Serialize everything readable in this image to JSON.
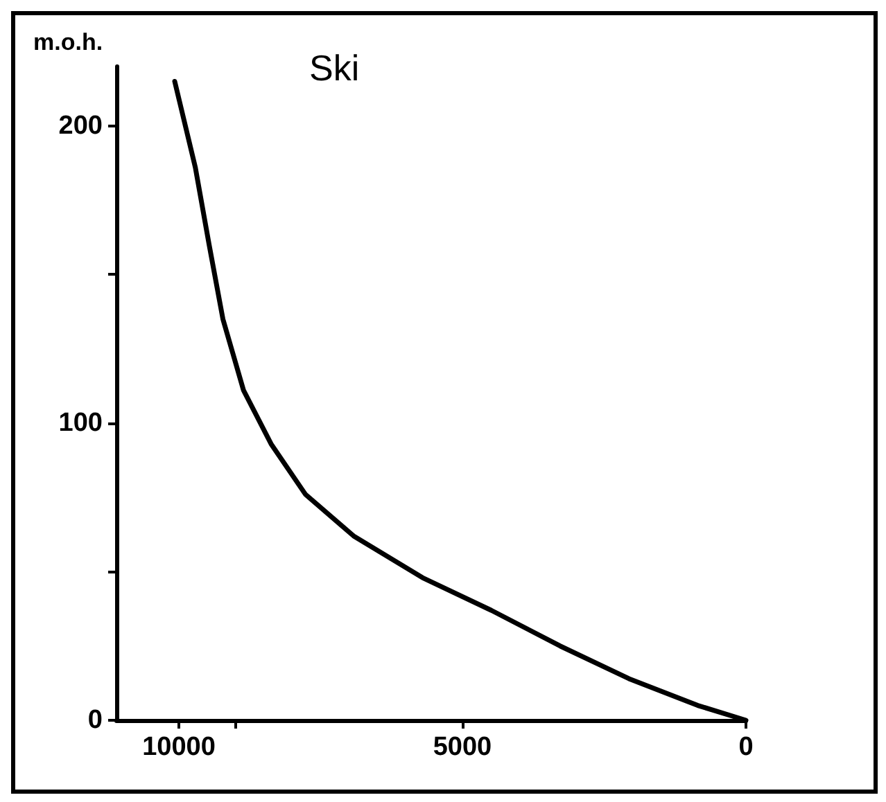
{
  "chart_data": {
    "type": "line",
    "title": "Ski",
    "ylabel": "m.o.h.",
    "x": [
      10073,
      9709,
      9466,
      9223,
      8859,
      8374,
      7767,
      6917,
      5704,
      4490,
      3277,
      2063,
      850,
      0
    ],
    "series": [
      {
        "color": "#000000",
        "values": [
          215,
          186,
          160,
          135,
          111,
          93,
          76,
          62,
          48,
          37,
          25,
          14,
          5,
          0
        ]
      }
    ],
    "xlim": [
      11100,
      0
    ],
    "xticks": [
      10000,
      {
        "value": 9000,
        "label": null
      },
      5000,
      0
    ],
    "ylim": [
      0,
      220
    ],
    "yticks": [
      0,
      {
        "value": 50,
        "label": null
      },
      100,
      {
        "value": 150,
        "label": null
      },
      200
    ],
    "grid": false,
    "marker": "none",
    "line_style": "solid"
  }
}
